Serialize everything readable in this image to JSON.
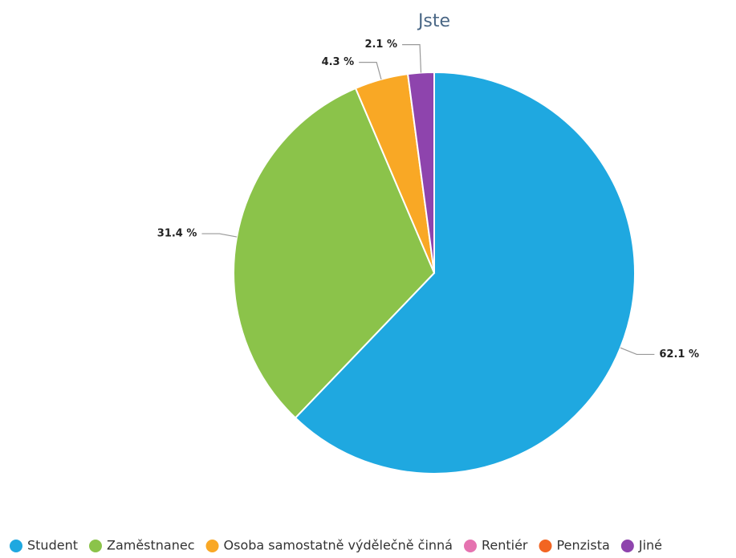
{
  "chart_data": {
    "type": "pie",
    "title": "Jste",
    "categories": [
      "Student",
      "Zaměstnanec",
      "Osoba samostatně výdělečně činná",
      "Rentiér",
      "Penzista",
      "Jiné"
    ],
    "values": [
      62.1,
      31.4,
      4.3,
      0,
      0,
      2.1
    ],
    "value_labels": [
      "62.1 %",
      "31.4 %",
      "4.3 %",
      null,
      null,
      "2.1 %"
    ],
    "colors": [
      "#1fa8e0",
      "#8bc34a",
      "#f9a825",
      "#e573b0",
      "#f26522",
      "#8e44ad"
    ],
    "legend": "bottom"
  }
}
